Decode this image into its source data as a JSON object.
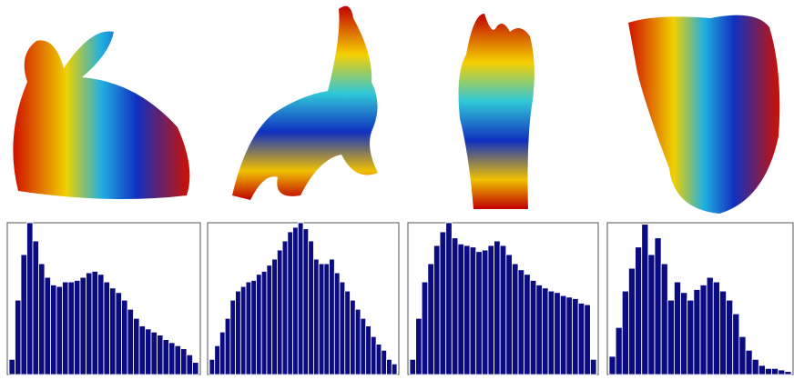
{
  "chart_data": [
    {
      "type": "histogram",
      "color": "#0c0c82",
      "ylim": [
        0,
        100
      ],
      "values": [
        10,
        49,
        79,
        100,
        88,
        73,
        64,
        59,
        58,
        61,
        61,
        62,
        64,
        67,
        68,
        66,
        61,
        57,
        54,
        49,
        43,
        37,
        32,
        30,
        28,
        26,
        23,
        21,
        19,
        17,
        13,
        8
      ]
    },
    {
      "type": "histogram",
      "color": "#0c0c82",
      "ylim": [
        0,
        100
      ],
      "values": [
        10,
        19,
        28,
        37,
        49,
        55,
        58,
        61,
        62,
        66,
        68,
        72,
        76,
        82,
        88,
        94,
        97,
        100,
        96,
        88,
        76,
        73,
        73,
        76,
        67,
        61,
        55,
        49,
        43,
        37,
        32,
        25,
        20,
        16,
        10,
        7
      ]
    },
    {
      "type": "histogram",
      "color": "#0c0c82",
      "ylim": [
        0,
        100
      ],
      "values": [
        10,
        37,
        61,
        73,
        85,
        94,
        100,
        90,
        86,
        85,
        84,
        81,
        82,
        85,
        88,
        85,
        79,
        73,
        69,
        66,
        62,
        59,
        57,
        55,
        54,
        52,
        51,
        50,
        47,
        46,
        10
      ]
    },
    {
      "type": "histogram",
      "color": "#0c0c82",
      "ylim": [
        0,
        100
      ],
      "values": [
        12,
        31,
        55,
        70,
        84,
        99,
        79,
        90,
        73,
        49,
        61,
        54,
        49,
        56,
        59,
        64,
        61,
        55,
        49,
        40,
        25,
        16,
        10,
        6,
        4,
        4,
        3,
        2
      ]
    }
  ]
}
